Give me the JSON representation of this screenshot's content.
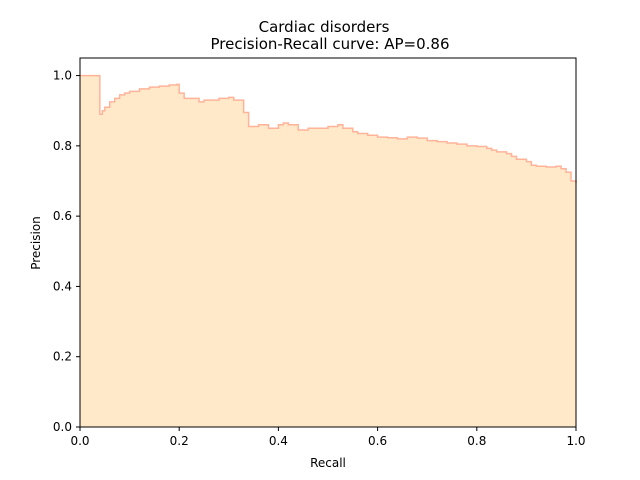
{
  "chart_data": {
    "type": "area",
    "title": "Cardiac disorders",
    "subtitle": "Precision-Recall curve: AP=0.86",
    "xlabel": "Recall",
    "ylabel": "Precision",
    "xlim": [
      0.0,
      1.0
    ],
    "ylim": [
      0.0,
      1.05
    ],
    "xticks": [
      "0.0",
      "0.2",
      "0.4",
      "0.6",
      "0.8",
      "1.0"
    ],
    "yticks": [
      "0.0",
      "0.2",
      "0.4",
      "0.6",
      "0.8",
      "1.0"
    ],
    "grid": false,
    "step": "post",
    "colors": {
      "fill": "#FFE9C9",
      "line": "#FFB49A"
    },
    "series": [
      {
        "recall": [
          0.0,
          0.04,
          0.04,
          0.045,
          0.05,
          0.06,
          0.07,
          0.08,
          0.09,
          0.1,
          0.12,
          0.14,
          0.16,
          0.18,
          0.195,
          0.2,
          0.21,
          0.24,
          0.25,
          0.28,
          0.3,
          0.31,
          0.33,
          0.34,
          0.36,
          0.38,
          0.4,
          0.41,
          0.42,
          0.44,
          0.46,
          0.48,
          0.5,
          0.52,
          0.53,
          0.55,
          0.56,
          0.58,
          0.6,
          0.62,
          0.64,
          0.66,
          0.68,
          0.7,
          0.72,
          0.74,
          0.76,
          0.78,
          0.8,
          0.82,
          0.83,
          0.84,
          0.86,
          0.87,
          0.88,
          0.9,
          0.91,
          0.92,
          0.94,
          0.96,
          0.97,
          0.98,
          0.99,
          1.0
        ],
        "precision": [
          1.0,
          1.0,
          0.89,
          0.9,
          0.91,
          0.925,
          0.935,
          0.945,
          0.95,
          0.955,
          0.962,
          0.967,
          0.97,
          0.973,
          0.975,
          0.95,
          0.935,
          0.925,
          0.93,
          0.935,
          0.938,
          0.93,
          0.895,
          0.855,
          0.86,
          0.85,
          0.86,
          0.865,
          0.86,
          0.845,
          0.85,
          0.85,
          0.855,
          0.86,
          0.85,
          0.84,
          0.835,
          0.83,
          0.825,
          0.823,
          0.82,
          0.825,
          0.822,
          0.815,
          0.812,
          0.808,
          0.805,
          0.8,
          0.798,
          0.793,
          0.788,
          0.783,
          0.778,
          0.77,
          0.762,
          0.755,
          0.745,
          0.742,
          0.74,
          0.742,
          0.735,
          0.725,
          0.7,
          0.695
        ]
      }
    ]
  }
}
